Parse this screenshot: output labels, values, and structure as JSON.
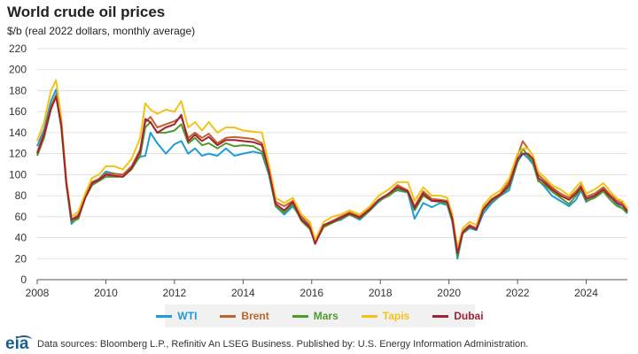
{
  "title": "World crude oil prices",
  "subtitle": "$/b (real 2022 dollars, monthly average)",
  "source": "Data sources: Bloomberg L.P., Refinitiv An LSEG Business. Published by: U.S. Energy Information Administration.",
  "logo_text": "eia",
  "colors": {
    "WTI": "#1f9bd7",
    "Brent": "#c0622a",
    "Mars": "#4f9a2c",
    "Tapis": "#f2c318",
    "Dubai": "#a52035"
  },
  "chart_data": {
    "type": "line",
    "title": "World crude oil prices",
    "ylabel": "$/b (real 2022 dollars, monthly average)",
    "xlim": [
      2008,
      2025.2
    ],
    "ylim": [
      0,
      220
    ],
    "yticks": [
      0,
      20,
      40,
      60,
      80,
      100,
      120,
      140,
      160,
      180,
      200,
      220
    ],
    "xticks": [
      2008,
      2010,
      2012,
      2014,
      2016,
      2018,
      2020,
      2022,
      2024
    ],
    "grid": true,
    "legend": "bottom",
    "x": [
      2008.0,
      2008.2,
      2008.4,
      2008.55,
      2008.7,
      2008.85,
      2009.0,
      2009.2,
      2009.4,
      2009.6,
      2009.8,
      2010.0,
      2010.25,
      2010.5,
      2010.75,
      2011.0,
      2011.15,
      2011.3,
      2011.5,
      2011.75,
      2012.0,
      2012.2,
      2012.4,
      2012.6,
      2012.8,
      2013.0,
      2013.25,
      2013.5,
      2013.75,
      2014.0,
      2014.3,
      2014.55,
      2014.75,
      2014.95,
      2015.2,
      2015.45,
      2015.7,
      2015.95,
      2016.1,
      2016.35,
      2016.6,
      2016.85,
      2017.1,
      2017.4,
      2017.7,
      2017.95,
      2018.25,
      2018.5,
      2018.8,
      2019.0,
      2019.25,
      2019.5,
      2019.75,
      2019.95,
      2020.1,
      2020.25,
      2020.4,
      2020.6,
      2020.8,
      2021.0,
      2021.25,
      2021.5,
      2021.75,
      2022.0,
      2022.15,
      2022.3,
      2022.45,
      2022.6,
      2022.8,
      2023.0,
      2023.25,
      2023.5,
      2023.7,
      2023.85,
      2024.0,
      2024.25,
      2024.5,
      2024.7,
      2024.9,
      2025.05,
      2025.2
    ],
    "series": [
      {
        "name": "WTI",
        "values": [
          127,
          143,
          170,
          181,
          150,
          92,
          53,
          60,
          80,
          92,
          96,
          103,
          101,
          100,
          108,
          117,
          118,
          140,
          130,
          120,
          129,
          132,
          120,
          125,
          118,
          120,
          118,
          125,
          118,
          120,
          122,
          120,
          100,
          70,
          62,
          70,
          58,
          50,
          38,
          52,
          55,
          57,
          62,
          57,
          66,
          74,
          82,
          85,
          83,
          58,
          73,
          69,
          73,
          71,
          55,
          20,
          44,
          49,
          47,
          63,
          73,
          80,
          85,
          112,
          120,
          116,
          110,
          95,
          88,
          80,
          75,
          70,
          76,
          85,
          74,
          79,
          85,
          79,
          72,
          68,
          63
        ]
      },
      {
        "name": "Brent",
        "values": [
          121,
          140,
          165,
          176,
          150,
          93,
          57,
          62,
          79,
          93,
          96,
          101,
          101,
          100,
          108,
          124,
          150,
          155,
          145,
          148,
          151,
          155,
          135,
          140,
          135,
          139,
          130,
          135,
          136,
          135,
          134,
          130,
          105,
          74,
          70,
          75,
          60,
          52,
          36,
          52,
          56,
          60,
          64,
          60,
          68,
          76,
          82,
          90,
          85,
          70,
          84,
          77,
          76,
          75,
          60,
          27,
          46,
          52,
          49,
          68,
          77,
          82,
          93,
          118,
          132,
          125,
          118,
          100,
          94,
          88,
          82,
          78,
          84,
          90,
          79,
          82,
          88,
          81,
          75,
          73,
          66
        ]
      },
      {
        "name": "Mars",
        "values": [
          118,
          135,
          162,
          175,
          145,
          90,
          55,
          58,
          78,
          90,
          94,
          98,
          98,
          98,
          105,
          118,
          145,
          150,
          140,
          140,
          142,
          148,
          130,
          135,
          128,
          130,
          125,
          130,
          127,
          128,
          127,
          122,
          102,
          70,
          64,
          72,
          56,
          48,
          35,
          50,
          54,
          58,
          62,
          58,
          66,
          75,
          80,
          86,
          83,
          66,
          80,
          75,
          74,
          72,
          56,
          22,
          44,
          50,
          48,
          66,
          75,
          80,
          88,
          112,
          125,
          118,
          112,
          94,
          90,
          84,
          78,
          72,
          80,
          86,
          75,
          78,
          84,
          76,
          70,
          68,
          64
        ]
      },
      {
        "name": "Tapis",
        "values": [
          132,
          150,
          180,
          190,
          155,
          95,
          60,
          65,
          82,
          97,
          100,
          108,
          108,
          105,
          115,
          135,
          168,
          162,
          158,
          162,
          160,
          170,
          145,
          150,
          142,
          150,
          140,
          145,
          145,
          142,
          141,
          140,
          110,
          78,
          73,
          78,
          62,
          55,
          38,
          55,
          60,
          62,
          66,
          62,
          70,
          80,
          86,
          93,
          93,
          75,
          88,
          80,
          80,
          78,
          62,
          30,
          49,
          55,
          52,
          71,
          80,
          85,
          96,
          120,
          125,
          125,
          118,
          103,
          97,
          90,
          86,
          80,
          88,
          93,
          82,
          86,
          92,
          84,
          77,
          75,
          68
        ]
      },
      {
        "name": "Dubai",
        "values": [
          120,
          138,
          163,
          174,
          148,
          92,
          57,
          60,
          78,
          92,
          95,
          100,
          99,
          98,
          106,
          122,
          153,
          150,
          140,
          145,
          148,
          157,
          132,
          138,
          132,
          136,
          128,
          133,
          133,
          132,
          131,
          128,
          104,
          72,
          66,
          74,
          57,
          50,
          34,
          52,
          55,
          59,
          63,
          59,
          67,
          76,
          82,
          88,
          84,
          68,
          82,
          75,
          75,
          74,
          58,
          25,
          45,
          51,
          48,
          67,
          76,
          81,
          90,
          115,
          120,
          120,
          115,
          97,
          92,
          86,
          80,
          76,
          82,
          88,
          77,
          80,
          86,
          79,
          73,
          71,
          65
        ]
      }
    ]
  }
}
